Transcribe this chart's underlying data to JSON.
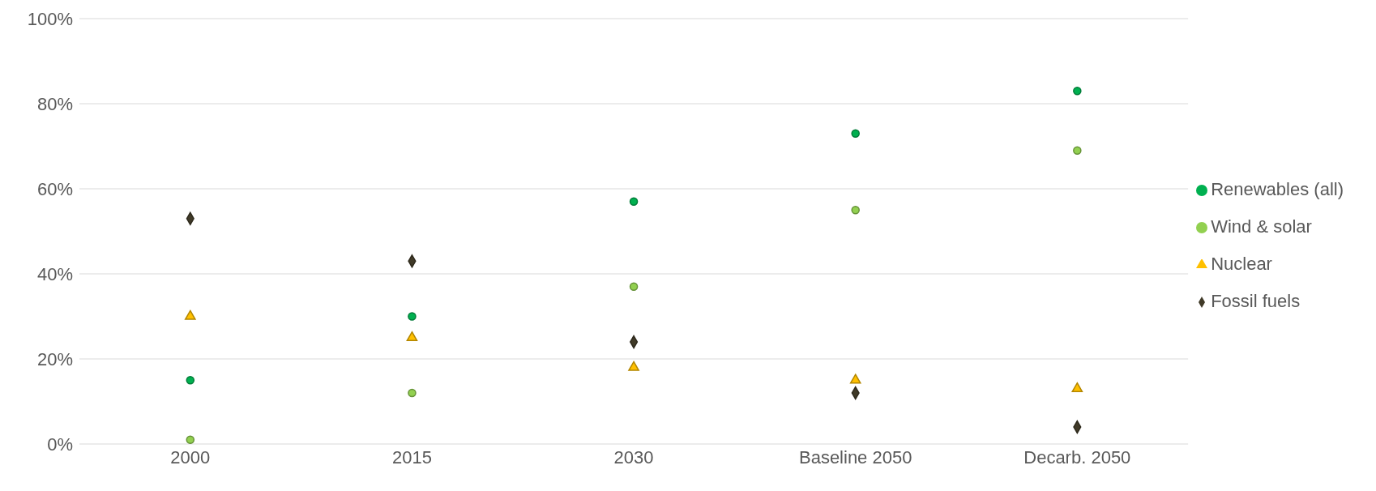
{
  "chart_data": {
    "type": "scatter",
    "categories": [
      "2000",
      "2015",
      "2030",
      "Baseline 2050",
      "Decarb. 2050"
    ],
    "series": [
      {
        "name": "Renewables (all)",
        "color": "#00b050",
        "marker": "circle",
        "values": [
          15,
          30,
          57,
          73,
          83
        ]
      },
      {
        "name": "Wind & solar",
        "color": "#92d050",
        "marker": "circle",
        "values": [
          1,
          12,
          37,
          55,
          69
        ]
      },
      {
        "name": "Nuclear",
        "color": "#ffc000",
        "marker": "triangle",
        "values": [
          30,
          25,
          18,
          15,
          13
        ]
      },
      {
        "name": "Fossil fuels",
        "color": "#403a28",
        "marker": "diamond",
        "values": [
          53,
          43,
          24,
          12,
          4
        ]
      }
    ],
    "ylim": [
      0,
      100
    ],
    "yticks": [
      {
        "value": 0,
        "label": "0%"
      },
      {
        "value": 20,
        "label": "20%"
      },
      {
        "value": 40,
        "label": "40%"
      },
      {
        "value": 60,
        "label": "60%"
      },
      {
        "value": 80,
        "label": "80%"
      },
      {
        "value": 100,
        "label": "100%"
      }
    ],
    "grid": "y",
    "legend": "right"
  }
}
